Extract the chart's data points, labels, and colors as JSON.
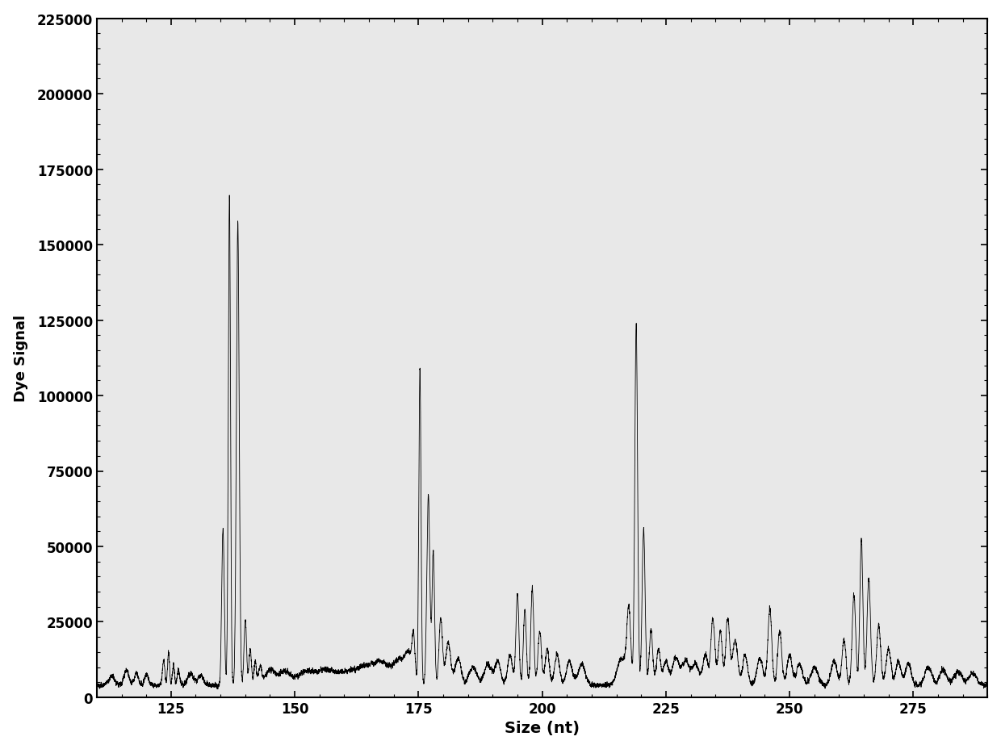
{
  "title": "",
  "xlabel": "Size (nt)",
  "ylabel": "Dye Signal",
  "xlim": [
    110,
    290
  ],
  "ylim": [
    0,
    225000
  ],
  "xticks": [
    125,
    150,
    175,
    200,
    225,
    250,
    275
  ],
  "yticks": [
    0,
    25000,
    50000,
    75000,
    100000,
    125000,
    150000,
    175000,
    200000,
    225000
  ],
  "line_color": "#000000",
  "background_color": "#ffffff",
  "plot_bg_color": "#e8e8e8",
  "figsize": [
    12.4,
    9.29
  ],
  "dpi": 100
}
